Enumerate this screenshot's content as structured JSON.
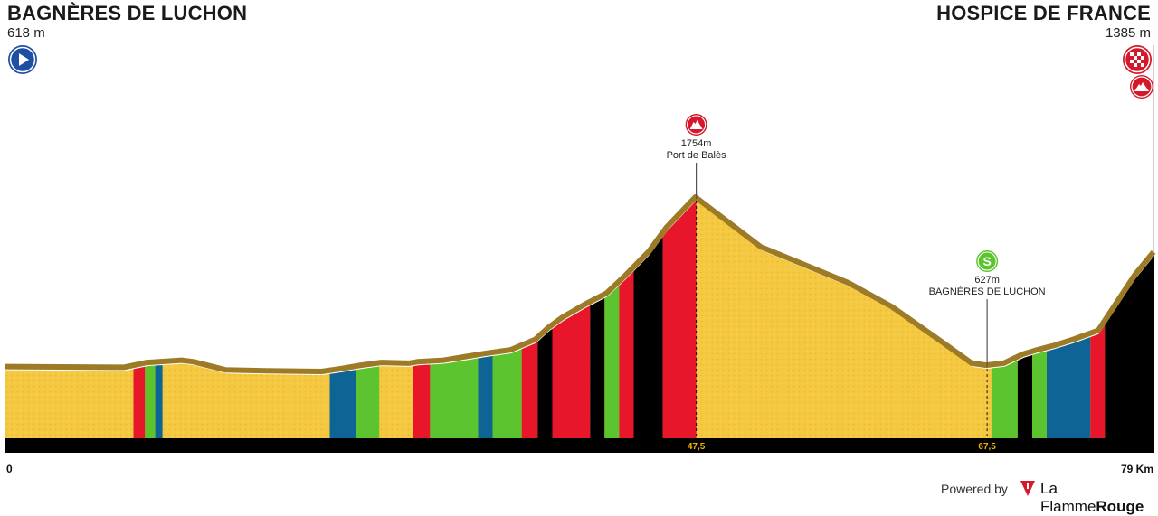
{
  "header": {
    "start": {
      "name": "BAGNÈRES DE LUCHON",
      "altitude": "618 m",
      "icon": "start-play-icon"
    },
    "finish": {
      "name": "HOSPICE DE FRANCE",
      "altitude": "1385 m",
      "icon": "finish-checkered-icon",
      "summit_icon": "mountain-summit-icon"
    }
  },
  "chart_data": {
    "type": "area",
    "xlabel": "",
    "ylabel": "",
    "x_unit": "Km",
    "xlim": [
      0,
      79
    ],
    "ylim": [
      0,
      1754
    ],
    "x_ticks": [
      "0",
      "79 Km"
    ],
    "km_markers": [
      "47,5",
      "67,5"
    ],
    "series": [
      {
        "values": [
          [
            0,
            618
          ],
          [
            8.2,
            613
          ],
          [
            9.8,
            645
          ],
          [
            12.2,
            660
          ],
          [
            13,
            650
          ],
          [
            15.2,
            595
          ],
          [
            18,
            590
          ],
          [
            21.8,
            585
          ],
          [
            22.9,
            600
          ],
          [
            24.4,
            625
          ],
          [
            25.9,
            645
          ],
          [
            27.8,
            640
          ],
          [
            28.4,
            650
          ],
          [
            30.2,
            660
          ],
          [
            33,
            705
          ],
          [
            34.8,
            730
          ],
          [
            36.5,
            800
          ],
          [
            37.4,
            880
          ],
          [
            38.4,
            950
          ],
          [
            40,
            1040
          ],
          [
            41.4,
            1110
          ],
          [
            42.7,
            1230
          ],
          [
            44.3,
            1390
          ],
          [
            45.5,
            1550
          ],
          [
            47.5,
            1754
          ],
          [
            52,
            1420
          ],
          [
            58,
            1180
          ],
          [
            61,
            1020
          ],
          [
            64.5,
            780
          ],
          [
            66.5,
            640
          ],
          [
            67.5,
            627
          ],
          [
            68.7,
            640
          ],
          [
            70,
            700
          ],
          [
            71,
            730
          ],
          [
            72.2,
            760
          ],
          [
            73.5,
            800
          ],
          [
            75.2,
            860
          ],
          [
            77.7,
            1230
          ],
          [
            79,
            1385
          ]
        ],
        "gradient_bands": [
          [
            8.8,
            9.6,
            "red"
          ],
          [
            9.6,
            10.3,
            "green"
          ],
          [
            10.3,
            10.8,
            "blue"
          ],
          [
            22.3,
            24.1,
            "blue"
          ],
          [
            24.1,
            25.7,
            "green"
          ],
          [
            28.0,
            29.2,
            "red"
          ],
          [
            29.2,
            32.5,
            "green"
          ],
          [
            32.5,
            33.5,
            "blue"
          ],
          [
            33.5,
            35.5,
            "green"
          ],
          [
            35.5,
            36.6,
            "red"
          ],
          [
            36.6,
            37.6,
            "black"
          ],
          [
            37.6,
            40.2,
            "red"
          ],
          [
            40.2,
            41.2,
            "black"
          ],
          [
            41.2,
            42.2,
            "green"
          ],
          [
            42.2,
            43.2,
            "red"
          ],
          [
            43.2,
            45.2,
            "black"
          ],
          [
            45.2,
            47.5,
            "red"
          ],
          [
            67.8,
            69.6,
            "green"
          ],
          [
            69.6,
            70.6,
            "black"
          ],
          [
            70.6,
            71.6,
            "green"
          ],
          [
            71.6,
            74.6,
            "blue"
          ],
          [
            74.6,
            75.6,
            "red"
          ],
          [
            75.6,
            79,
            "black"
          ]
        ]
      }
    ],
    "annotations": [
      {
        "type": "climb",
        "x": 47.5,
        "altitude": "1754m",
        "name": "Port de Balès",
        "icon": "mountain-summit-icon"
      },
      {
        "type": "sprint",
        "x": 67.5,
        "altitude": "627m",
        "name": "BAGNÈRES DE LUCHON",
        "icon": "sprint-s-icon",
        "icon_text": "S"
      }
    ],
    "colors": {
      "fill": "#f5c842",
      "crest": "#9c7a26",
      "baseline": "#000000",
      "marker_text": "#f5b400",
      "bands": {
        "red": "#e8162b",
        "green": "#5cc42e",
        "blue": "#0e6595",
        "black": "#000000"
      }
    }
  },
  "footer": {
    "km_start": "0",
    "km_end": "79 Km",
    "powered_by": "Powered by",
    "brand_light": "La Flamme",
    "brand_bold": "Rouge"
  }
}
